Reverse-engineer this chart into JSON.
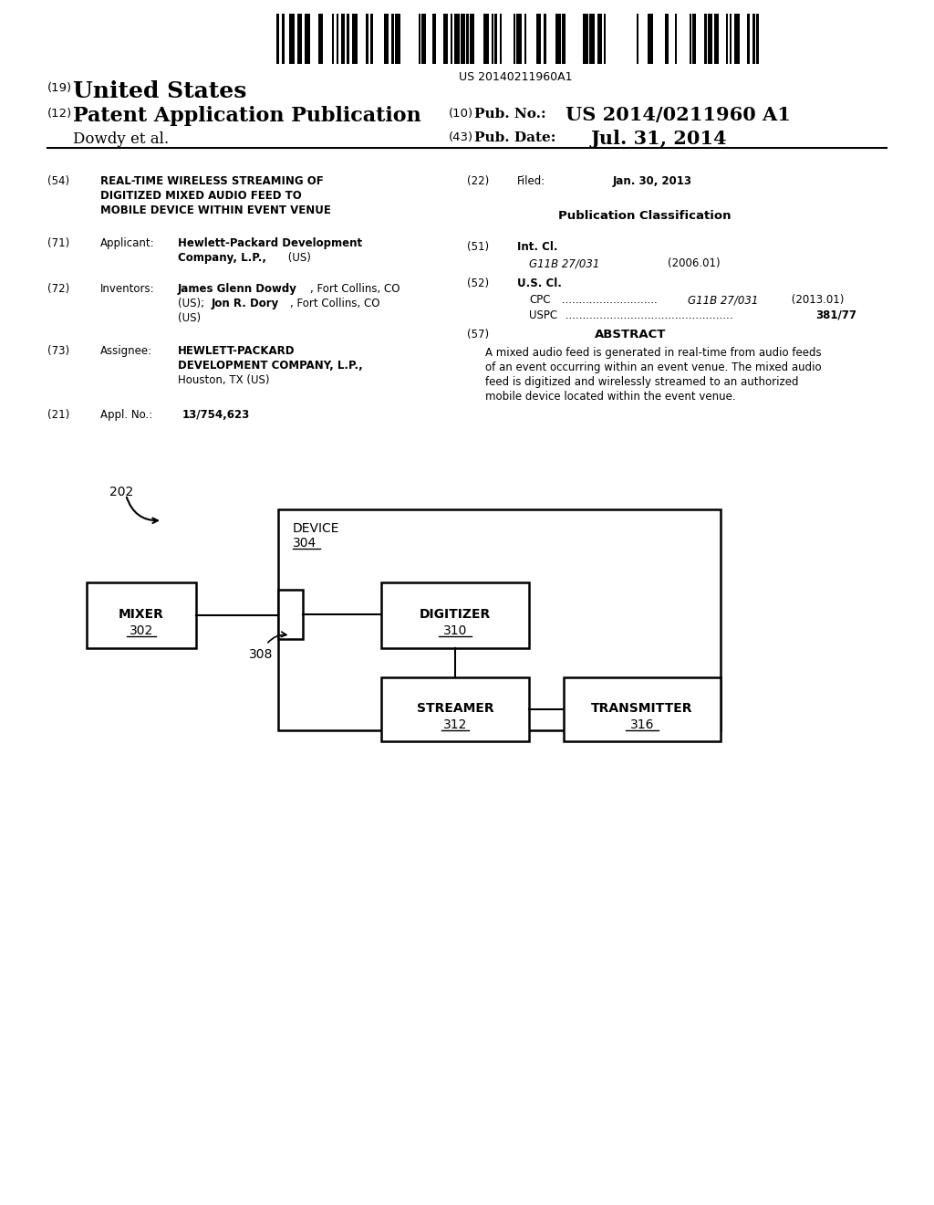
{
  "background_color": "#ffffff",
  "barcode_text": "US 20140211960A1",
  "header": {
    "number_19": "(19)",
    "us_text": "United States",
    "number_12": "(12)",
    "pat_app_pub": "Patent Application Publication",
    "author": "Dowdy et al.",
    "number_10": "(10)",
    "pub_no_label": "Pub. No.:",
    "pub_no_value": "US 2014/0211960 A1",
    "number_43": "(43)",
    "pub_date_label": "Pub. Date:",
    "pub_date_value": "Jul. 31, 2014"
  },
  "diagram": {
    "ref202": "202",
    "device_label": "DEVICE",
    "device_num": "304",
    "mixer_label": "MIXER",
    "mixer_num": "302",
    "digitizer_label": "DIGITIZER",
    "digitizer_num": "310",
    "streamer_label": "STREAMER",
    "streamer_num": "312",
    "transmitter_label": "TRANSMITTER",
    "transmitter_num": "316",
    "ref308": "308"
  }
}
